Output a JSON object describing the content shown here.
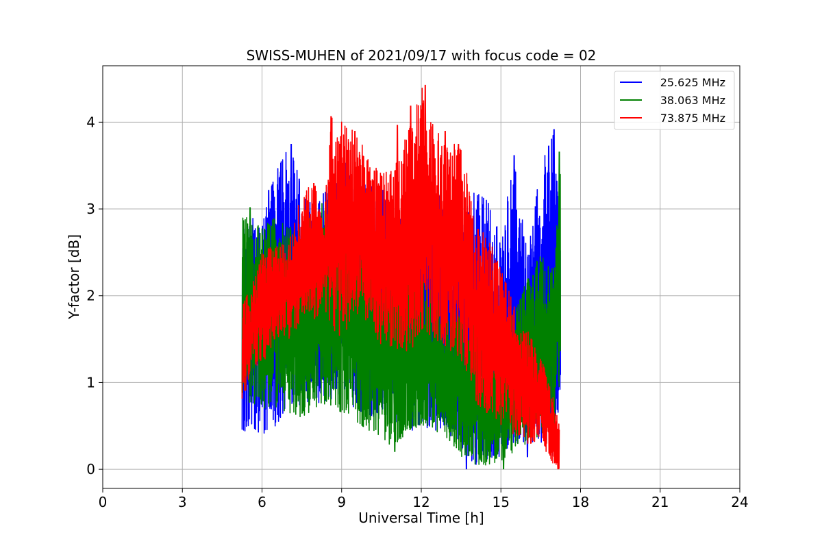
{
  "chart_data": {
    "type": "line",
    "title": "SWISS-MUHEN of 2021/09/17 with focus code = 02",
    "xlabel": "Universal Time [h]",
    "ylabel": "Y-factor [dB]",
    "xlim": [
      0,
      24
    ],
    "ylim": [
      -0.22,
      4.65
    ],
    "xticks": [
      0,
      3,
      6,
      9,
      12,
      15,
      18,
      21,
      24
    ],
    "yticks": [
      0,
      1,
      2,
      3,
      4
    ],
    "grid": true,
    "legend_position": "top-right",
    "series": [
      {
        "name": "25.625 MHz",
        "color": "#0000ff",
        "envelope": {
          "x": [
            5.25,
            5.6,
            6.0,
            6.5,
            7.0,
            7.5,
            8.0,
            8.5,
            9.0,
            9.5,
            10.0,
            10.5,
            11.0,
            11.5,
            12.0,
            12.5,
            13.0,
            13.5,
            14.0,
            14.5,
            15.0,
            15.5,
            16.0,
            16.5,
            17.0,
            17.25
          ],
          "low": [
            0.45,
            0.42,
            0.4,
            0.5,
            0.65,
            0.75,
            0.75,
            0.8,
            0.8,
            0.7,
            0.6,
            0.6,
            0.55,
            0.45,
            0.45,
            0.45,
            0.4,
            0.2,
            0.05,
            0.1,
            0.15,
            0.3,
            0.3,
            0.25,
            0.15,
            0.9
          ],
          "high": [
            2.8,
            2.9,
            2.9,
            3.4,
            3.75,
            3.3,
            3.0,
            3.3,
            3.5,
            3.6,
            3.3,
            3.3,
            2.9,
            3.3,
            3.5,
            3.3,
            3.0,
            2.9,
            3.2,
            3.1,
            2.7,
            3.6,
            2.5,
            3.5,
            3.9,
            2.7
          ]
        },
        "peaks": [
          [
            6.25,
            3.22
          ],
          [
            6.7,
            3.43
          ],
          [
            7.1,
            3.75
          ],
          [
            7.4,
            3.35
          ],
          [
            7.7,
            3.0
          ],
          [
            10.5,
            3.27
          ],
          [
            11.5,
            3.2
          ],
          [
            13.5,
            3.32
          ],
          [
            15.5,
            3.62
          ],
          [
            16.3,
            3.03
          ],
          [
            16.8,
            3.73
          ],
          [
            17.0,
            3.92
          ]
        ],
        "dips": [
          [
            13.7,
            0.0
          ],
          [
            16.0,
            0.14
          ]
        ]
      },
      {
        "name": "38.063 MHz",
        "color": "#008000",
        "envelope": {
          "x": [
            5.25,
            5.6,
            6.0,
            6.5,
            7.0,
            7.5,
            8.0,
            8.5,
            9.0,
            9.5,
            10.0,
            10.5,
            11.0,
            11.5,
            12.0,
            12.5,
            13.0,
            13.5,
            14.0,
            14.5,
            15.0,
            15.5,
            16.0,
            16.5,
            17.0,
            17.25
          ],
          "low": [
            0.85,
            0.75,
            0.7,
            0.7,
            0.65,
            0.6,
            0.7,
            0.75,
            0.65,
            0.55,
            0.45,
            0.35,
            0.25,
            0.45,
            0.5,
            0.45,
            0.35,
            0.15,
            0.05,
            0.05,
            0.1,
            0.2,
            0.3,
            0.4,
            0.45,
            1.1
          ],
          "high": [
            2.9,
            2.95,
            2.8,
            2.9,
            2.8,
            2.75,
            3.0,
            3.15,
            2.8,
            2.7,
            2.4,
            2.2,
            2.3,
            2.3,
            2.2,
            2.0,
            1.9,
            1.8,
            1.8,
            1.6,
            1.6,
            1.8,
            2.2,
            2.5,
            2.3,
            3.6
          ]
        },
        "peaks": [
          [
            5.3,
            2.87
          ],
          [
            5.55,
            3.02
          ],
          [
            8.5,
            3.15
          ],
          [
            17.2,
            3.66
          ]
        ],
        "dips": [
          [
            11.0,
            0.2
          ],
          [
            15.1,
            0.0
          ]
        ]
      },
      {
        "name": "73.875 MHz",
        "color": "#ff0000",
        "envelope": {
          "x": [
            5.25,
            5.6,
            6.0,
            6.5,
            7.0,
            7.5,
            8.0,
            8.3,
            8.6,
            9.0,
            9.5,
            10.0,
            10.5,
            11.0,
            11.5,
            12.0,
            12.5,
            13.0,
            13.5,
            13.8,
            14.0,
            14.5,
            15.0,
            15.5,
            16.0,
            16.5,
            17.0,
            17.2
          ],
          "low": [
            0.7,
            1.2,
            1.2,
            1.5,
            1.5,
            1.7,
            1.7,
            1.9,
            1.6,
            1.5,
            1.8,
            1.7,
            1.4,
            1.4,
            1.3,
            1.6,
            1.5,
            1.4,
            1.2,
            1.1,
            0.8,
            0.6,
            0.5,
            0.4,
            0.3,
            0.3,
            0.05,
            0.0
          ],
          "high": [
            1.9,
            2.1,
            2.5,
            2.6,
            2.6,
            3.2,
            3.3,
            2.8,
            4.07,
            4.0,
            3.9,
            3.6,
            3.4,
            3.5,
            3.9,
            4.43,
            3.9,
            3.8,
            3.7,
            3.3,
            2.8,
            2.7,
            2.3,
            1.9,
            1.6,
            1.3,
            0.8,
            0.5
          ]
        },
        "peaks": [
          [
            7.95,
            3.3
          ],
          [
            8.6,
            4.07
          ],
          [
            9.5,
            3.9
          ],
          [
            11.1,
            3.97
          ],
          [
            11.6,
            4.19
          ],
          [
            12.15,
            4.43
          ],
          [
            12.9,
            3.9
          ],
          [
            13.4,
            3.75
          ]
        ],
        "dips": [
          [
            17.15,
            0.0
          ]
        ]
      }
    ]
  }
}
